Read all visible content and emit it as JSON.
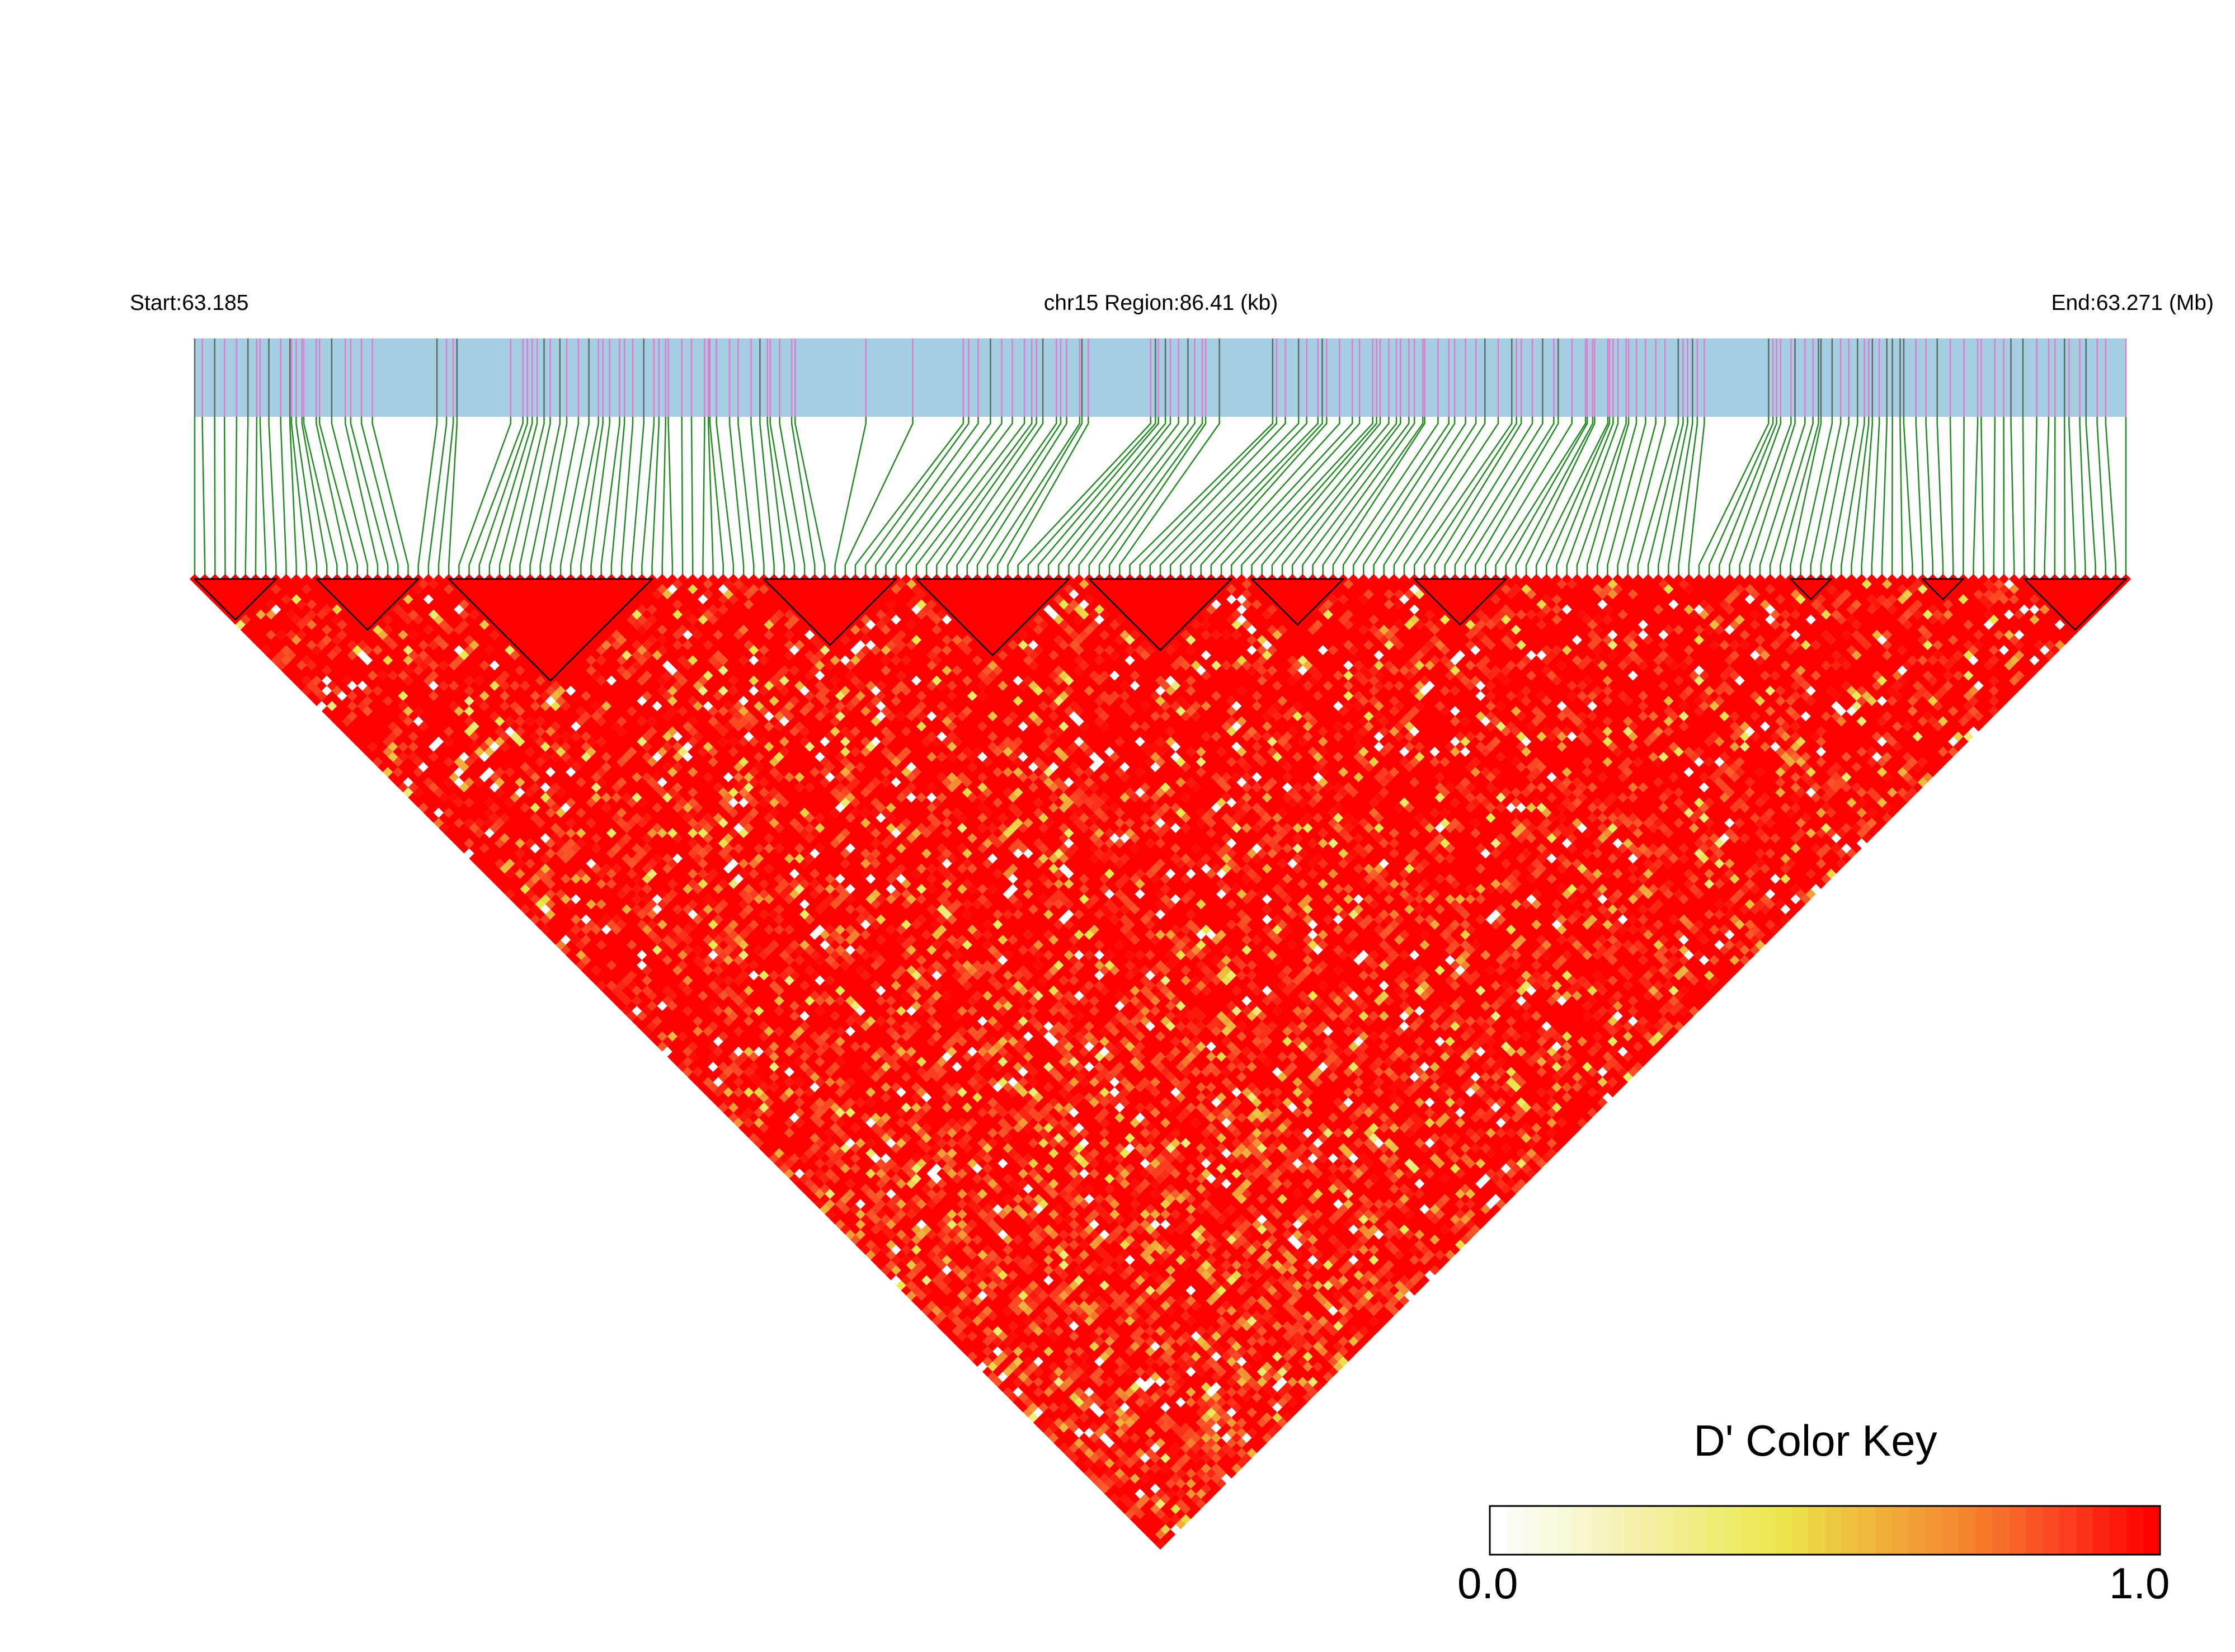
{
  "header": {
    "start_label": "Start:63.185",
    "region_label": "chr15 Region:86.41 (kb)",
    "end_label": "End:63.271 (Mb)"
  },
  "colors": {
    "track_fill": "#a6cee3",
    "snp_tick_pink": "#e07bd1",
    "snp_tick_dark": "#5b6b63",
    "connector_green": "#228b22",
    "ld_high": "#ff0000",
    "block_outline": "#000000"
  },
  "legend": {
    "title": "D' Color Key",
    "min_label": "0.0",
    "max_label": "1.0",
    "stops": [
      "#ffffff",
      "#f7f5c8",
      "#f2ec8a",
      "#ebe94c",
      "#f0b53c",
      "#f5862f",
      "#fa4522",
      "#ff0000"
    ]
  },
  "chart_data": {
    "type": "heatmap",
    "chromosome": "chr15",
    "region_start_mb": 63.185,
    "region_end_mb": 63.271,
    "region_length_kb": 86.41,
    "snp_count": 191,
    "value_range": [
      0,
      1
    ],
    "haplotype_blocks_snp_index": [
      [
        0,
        8
      ],
      [
        12,
        22
      ],
      [
        25,
        45
      ],
      [
        56,
        69
      ],
      [
        71,
        86
      ],
      [
        88,
        102
      ],
      [
        104,
        113
      ],
      [
        120,
        129
      ],
      [
        157,
        161
      ],
      [
        170,
        174
      ],
      [
        180,
        190
      ]
    ],
    "ld_map_note_values": "D' values per SNP pair, predominantly near 1.0 with scattered lower values"
  }
}
